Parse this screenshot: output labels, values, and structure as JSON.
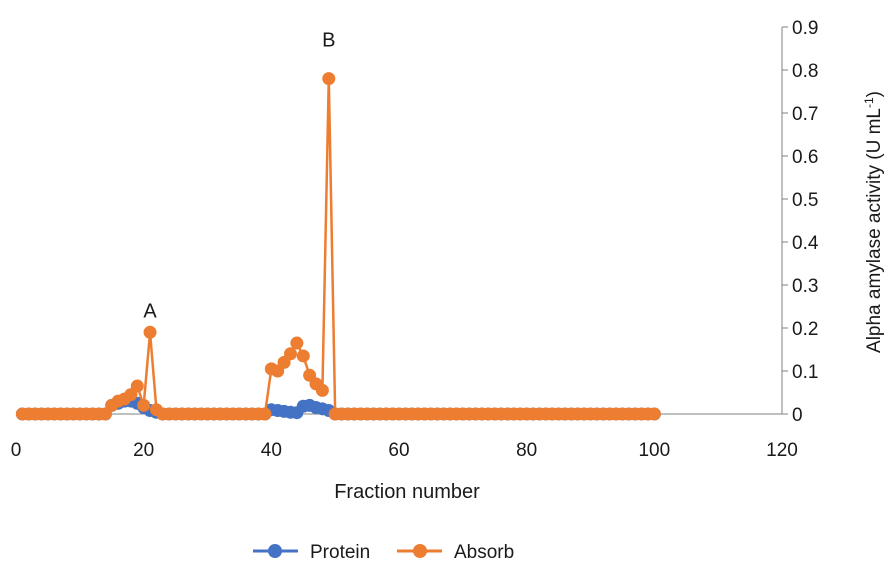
{
  "chart_data": {
    "type": "line",
    "xlabel": "Fraction number",
    "ylabel_main": "Alpha amylase activity (U mL",
    "ylabel_sup": "-1",
    "ylabel_close": ")",
    "xlim": [
      0,
      120
    ],
    "ylim": [
      0,
      0.9
    ],
    "xticks": [
      0,
      20,
      40,
      60,
      80,
      100,
      120
    ],
    "yticks": [
      0,
      0.1,
      0.2,
      0.3,
      0.4,
      0.5,
      0.6,
      0.7,
      0.8,
      0.9
    ],
    "grid": false,
    "legend_position": "bottom-center",
    "annotations": [
      {
        "text": "A",
        "x": 21,
        "y": 0.225
      },
      {
        "text": "B",
        "x": 49,
        "y": 0.855
      }
    ],
    "x": [
      1,
      2,
      3,
      4,
      5,
      6,
      7,
      8,
      9,
      10,
      11,
      12,
      13,
      14,
      15,
      16,
      17,
      18,
      19,
      20,
      21,
      22,
      23,
      24,
      25,
      26,
      27,
      28,
      29,
      30,
      31,
      32,
      33,
      34,
      35,
      36,
      37,
      38,
      39,
      40,
      41,
      42,
      43,
      44,
      45,
      46,
      47,
      48,
      49,
      50,
      51,
      52,
      53,
      54,
      55,
      56,
      57,
      58,
      59,
      60,
      61,
      62,
      63,
      64,
      65,
      66,
      67,
      68,
      69,
      70,
      71,
      72,
      73,
      74,
      75,
      76,
      77,
      78,
      79,
      80,
      81,
      82,
      83,
      84,
      85,
      86,
      87,
      88,
      89,
      90,
      91,
      92,
      93,
      94,
      95,
      96,
      97,
      98,
      99,
      100
    ],
    "series": [
      {
        "name": "Protein",
        "color": "#4472C4",
        "values": [
          0,
          0,
          0,
          0,
          0,
          0,
          0,
          0,
          0,
          0,
          0,
          0,
          0,
          0,
          0.02,
          0.025,
          0.03,
          0.03,
          0.025,
          0.015,
          0.008,
          0.004,
          0,
          0,
          0,
          0,
          0,
          0,
          0,
          0,
          0,
          0,
          0,
          0,
          0,
          0,
          0,
          0,
          0,
          0.01,
          0.008,
          0.006,
          0.004,
          0.003,
          0.018,
          0.02,
          0.015,
          0.012,
          0.008,
          0,
          0,
          0,
          0,
          0,
          0,
          0,
          0,
          0,
          0,
          0,
          0,
          0,
          0,
          0,
          0,
          0,
          0,
          0,
          0,
          0,
          0,
          0,
          0,
          0,
          0,
          0,
          0,
          0,
          0,
          0,
          0,
          0,
          0,
          0,
          0,
          0,
          0,
          0,
          0,
          0,
          0,
          0,
          0,
          0,
          0,
          0,
          0,
          0,
          0,
          0
        ]
      },
      {
        "name": "Absorb",
        "color": "#ED7D31",
        "values": [
          0,
          0,
          0,
          0,
          0,
          0,
          0,
          0,
          0,
          0,
          0,
          0,
          0,
          0,
          0.02,
          0.03,
          0.035,
          0.045,
          0.065,
          0.02,
          0.19,
          0.01,
          0,
          0,
          0,
          0,
          0,
          0,
          0,
          0,
          0,
          0,
          0,
          0,
          0,
          0,
          0,
          0,
          0,
          0.105,
          0.1,
          0.12,
          0.14,
          0.165,
          0.135,
          0.09,
          0.07,
          0.055,
          0.78,
          0,
          0,
          0,
          0,
          0,
          0,
          0,
          0,
          0,
          0,
          0,
          0,
          0,
          0,
          0,
          0,
          0,
          0,
          0,
          0,
          0,
          0,
          0,
          0,
          0,
          0,
          0,
          0,
          0,
          0,
          0,
          0,
          0,
          0,
          0,
          0,
          0,
          0,
          0,
          0,
          0,
          0,
          0,
          0,
          0,
          0,
          0,
          0,
          0,
          0,
          0
        ]
      }
    ]
  }
}
